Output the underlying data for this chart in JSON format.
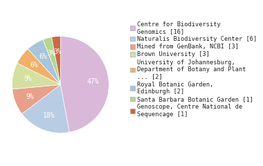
{
  "labels": [
    "Centre for Biodiversity\nGenomics [16]",
    "Naturalis Biodiversity Center [6]",
    "Mined from GenBank, NCBI [3]",
    "Brown University [3]",
    "University of Johannesburg,\nDepartment of Botany and Plant\n... [2]",
    "Royal Botanic Garden,\nEdinburgh [2]",
    "Santa Barbara Botanic Garden [1]",
    "Genoscope, Centre National de\nSequencage [1]"
  ],
  "values": [
    16,
    6,
    3,
    3,
    2,
    2,
    1,
    1
  ],
  "colors": [
    "#d9b8d9",
    "#b8cce4",
    "#e8a08a",
    "#d4e0a0",
    "#f0b06a",
    "#a8c4dc",
    "#b0d890",
    "#cc6848"
  ],
  "startangle": 90,
  "legend_fontsize": 6.2,
  "pct_fontsize": 7.0,
  "figsize": [
    3.8,
    2.4
  ],
  "dpi": 100
}
